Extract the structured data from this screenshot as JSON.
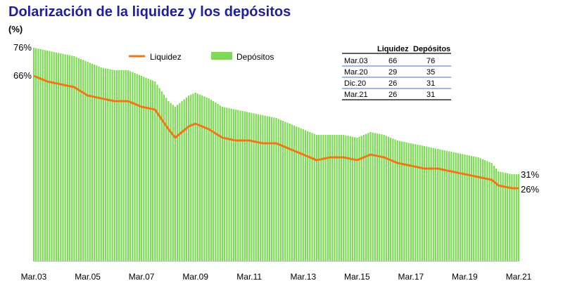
{
  "title": "Dolarización de la liquidez y los depósitos",
  "unit_label": "(%)",
  "chart_data": {
    "type": "bar+line",
    "title": "Dolarización de la liquidez y los depósitos",
    "ylabel": "(%)",
    "ylim": [
      0,
      80
    ],
    "grid": false,
    "legend_position": "top-center",
    "colors": {
      "bars": "#7ed957",
      "line": "#f07814",
      "title": "#1f1f9c"
    },
    "x_tick_labels": [
      "Mar.03",
      "Mar.05",
      "Mar.07",
      "Mar.09",
      "Mar.11",
      "Mar.13",
      "Mar.15",
      "Mar.17",
      "Mar.19",
      "Mar.21"
    ],
    "x_range": [
      "2003-03",
      "2021-03"
    ],
    "series": [
      {
        "name": "Liquidez",
        "kind": "line",
        "points": [
          [
            "2003-03",
            66
          ],
          [
            "2003-09",
            64
          ],
          [
            "2004-03",
            63
          ],
          [
            "2004-09",
            62
          ],
          [
            "2005-03",
            59
          ],
          [
            "2005-09",
            58
          ],
          [
            "2006-03",
            57
          ],
          [
            "2006-09",
            57
          ],
          [
            "2007-03",
            55
          ],
          [
            "2007-09",
            54
          ],
          [
            "2008-03",
            47
          ],
          [
            "2008-06",
            44
          ],
          [
            "2008-12",
            48
          ],
          [
            "2009-03",
            49
          ],
          [
            "2009-09",
            47
          ],
          [
            "2010-03",
            44
          ],
          [
            "2010-09",
            43
          ],
          [
            "2011-03",
            43
          ],
          [
            "2011-09",
            42
          ],
          [
            "2012-03",
            42
          ],
          [
            "2012-09",
            40
          ],
          [
            "2013-03",
            38
          ],
          [
            "2013-09",
            36
          ],
          [
            "2014-03",
            37
          ],
          [
            "2014-09",
            37
          ],
          [
            "2015-03",
            36
          ],
          [
            "2015-09",
            38
          ],
          [
            "2016-03",
            37
          ],
          [
            "2016-09",
            35
          ],
          [
            "2017-03",
            34
          ],
          [
            "2017-09",
            33
          ],
          [
            "2018-03",
            33
          ],
          [
            "2018-09",
            32
          ],
          [
            "2019-03",
            31
          ],
          [
            "2019-09",
            30
          ],
          [
            "2020-03",
            29
          ],
          [
            "2020-06",
            27
          ],
          [
            "2020-12",
            26
          ],
          [
            "2021-03",
            26
          ]
        ]
      },
      {
        "name": "Depósitos",
        "kind": "bar",
        "points": [
          [
            "2003-03",
            76
          ],
          [
            "2003-09",
            75
          ],
          [
            "2004-03",
            74
          ],
          [
            "2004-09",
            73
          ],
          [
            "2005-03",
            71
          ],
          [
            "2005-09",
            69
          ],
          [
            "2006-03",
            68
          ],
          [
            "2006-09",
            68
          ],
          [
            "2007-03",
            66
          ],
          [
            "2007-09",
            64
          ],
          [
            "2008-03",
            57
          ],
          [
            "2008-06",
            55
          ],
          [
            "2008-12",
            59
          ],
          [
            "2009-03",
            60
          ],
          [
            "2009-09",
            58
          ],
          [
            "2010-03",
            55
          ],
          [
            "2010-09",
            54
          ],
          [
            "2011-03",
            53
          ],
          [
            "2011-09",
            52
          ],
          [
            "2012-03",
            51
          ],
          [
            "2012-09",
            49
          ],
          [
            "2013-03",
            47
          ],
          [
            "2013-09",
            45
          ],
          [
            "2014-03",
            45
          ],
          [
            "2014-09",
            45
          ],
          [
            "2015-03",
            44
          ],
          [
            "2015-09",
            46
          ],
          [
            "2016-03",
            45
          ],
          [
            "2016-09",
            43
          ],
          [
            "2017-03",
            42
          ],
          [
            "2017-09",
            41
          ],
          [
            "2018-03",
            40
          ],
          [
            "2018-09",
            39
          ],
          [
            "2019-03",
            38
          ],
          [
            "2019-09",
            37
          ],
          [
            "2020-03",
            35
          ],
          [
            "2020-06",
            32
          ],
          [
            "2020-12",
            31
          ],
          [
            "2021-03",
            31
          ]
        ]
      }
    ],
    "annotations": [
      "76%",
      "66%",
      "31%",
      "26%"
    ],
    "table": {
      "headers": [
        "",
        "Liquidez",
        "Depósitos"
      ],
      "rows": [
        [
          "Mar.03",
          "66",
          "76"
        ],
        [
          "Mar.20",
          "29",
          "35"
        ],
        [
          "Dic.20",
          "26",
          "31"
        ],
        [
          "Mar.21",
          "26",
          "31"
        ]
      ]
    }
  }
}
